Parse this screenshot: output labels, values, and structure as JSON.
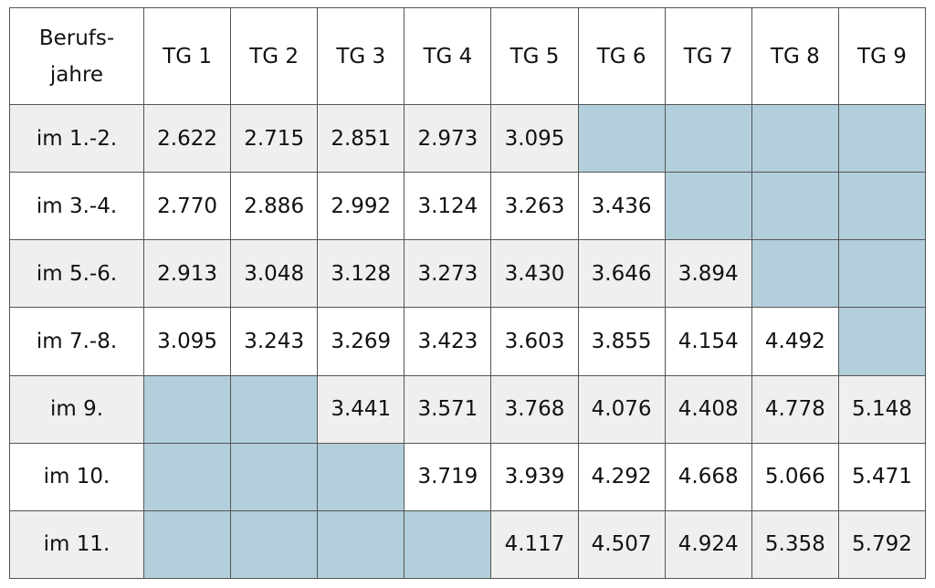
{
  "table": {
    "header": [
      "Berufs-\njahre",
      "TG 1",
      "TG 2",
      "TG 3",
      "TG 4",
      "TG 5",
      "TG 6",
      "TG 7",
      "TG 8",
      "TG 9"
    ],
    "rows": [
      [
        "im 1.-2.",
        "2.622",
        "2.715",
        "2.851",
        "2.973",
        "3.095",
        null,
        null,
        null,
        null
      ],
      [
        "im 3.-4.",
        "2.770",
        "2.886",
        "2.992",
        "3.124",
        "3.263",
        "3.436",
        null,
        null,
        null
      ],
      [
        "im 5.-6.",
        "2.913",
        "3.048",
        "3.128",
        "3.273",
        "3.430",
        "3.646",
        "3.894",
        null,
        null
      ],
      [
        "im 7.-8.",
        "3.095",
        "3.243",
        "3.269",
        "3.423",
        "3.603",
        "3.855",
        "4.154",
        "4.492",
        null
      ],
      [
        "im 9.",
        null,
        null,
        "3.441",
        "3.571",
        "3.768",
        "4.076",
        "4.408",
        "4.778",
        "5.148"
      ],
      [
        "im 10.",
        null,
        null,
        null,
        "3.719",
        "3.939",
        "4.292",
        "4.668",
        "5.066",
        "5.471"
      ],
      [
        "im 11.",
        null,
        null,
        null,
        null,
        "4.117",
        "4.507",
        "4.924",
        "5.358",
        "5.792"
      ]
    ]
  }
}
